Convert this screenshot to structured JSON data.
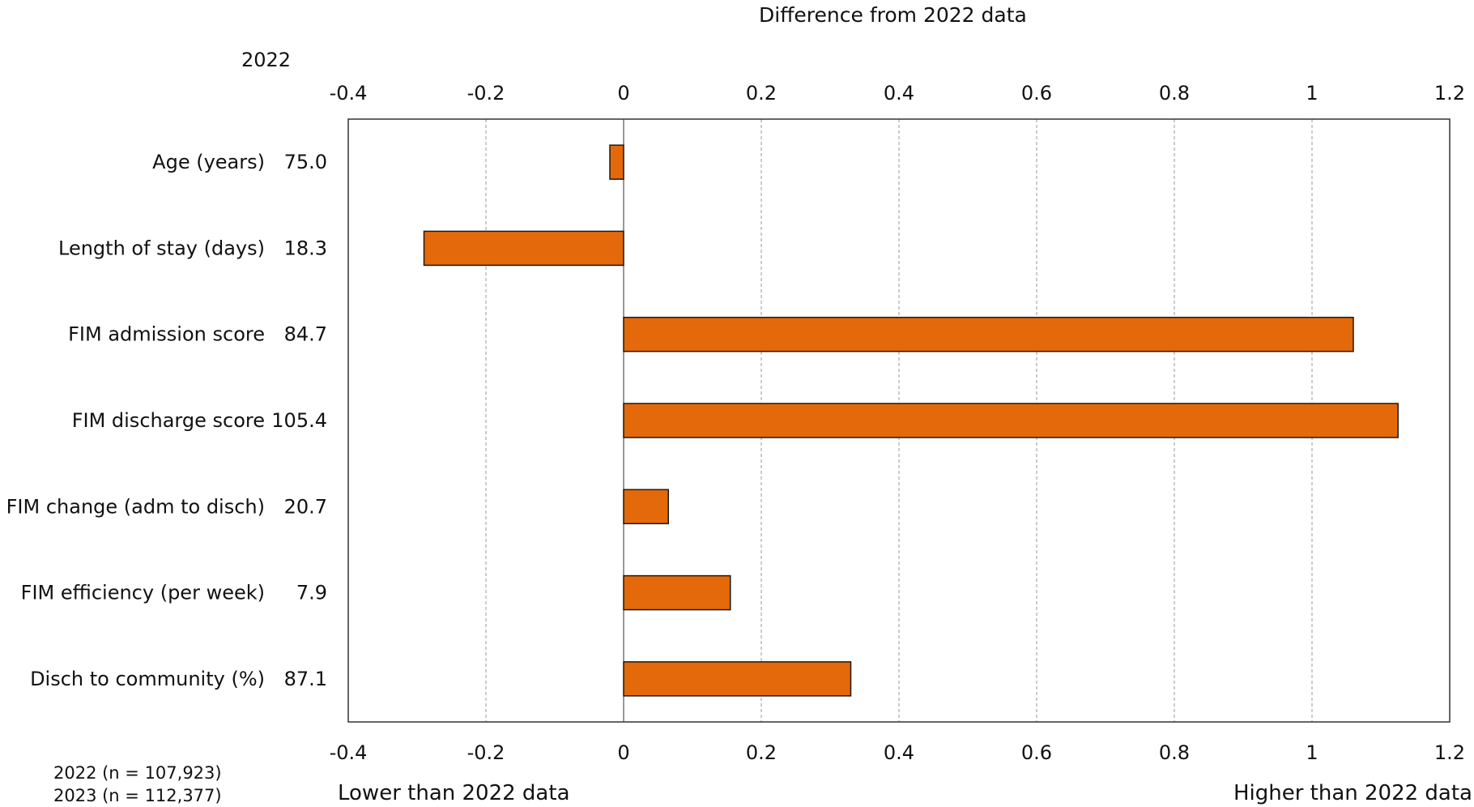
{
  "header": {
    "title": "Difference from 2022 data",
    "column_heading": "2022"
  },
  "footer": {
    "lower_label": "Lower than 2022 data",
    "higher_label": "Higher than 2022 data",
    "notes": [
      "2022 (n = 107,923)",
      "2023 (n = 112,377)"
    ]
  },
  "colors": {
    "bar": "#E3690A",
    "bar_outline": "#1a1a1a",
    "grid": "#999999",
    "frame": "#333333"
  },
  "chart_data": {
    "type": "bar",
    "orientation": "horizontal",
    "title": "Difference from 2022 data",
    "categories": [
      "Age (years)",
      "Length of stay (days)",
      "FIM admission score",
      "FIM discharge score",
      "FIM change (adm to disch)",
      "FIM efficiency (per week)",
      "Disch to community (%)"
    ],
    "baseline_2022": [
      "75.0",
      "18.3",
      "84.7",
      "105.4",
      "20.7",
      "7.9",
      "87.1"
    ],
    "values": [
      -0.02,
      -0.29,
      1.06,
      1.125,
      0.065,
      0.155,
      0.33
    ],
    "xlim": [
      -0.4,
      1.2
    ],
    "xticks": [
      -0.4,
      -0.2,
      0,
      0.2,
      0.4,
      0.6,
      0.8,
      1,
      1.2
    ],
    "grid": "vertical dashed",
    "legend": "none"
  }
}
